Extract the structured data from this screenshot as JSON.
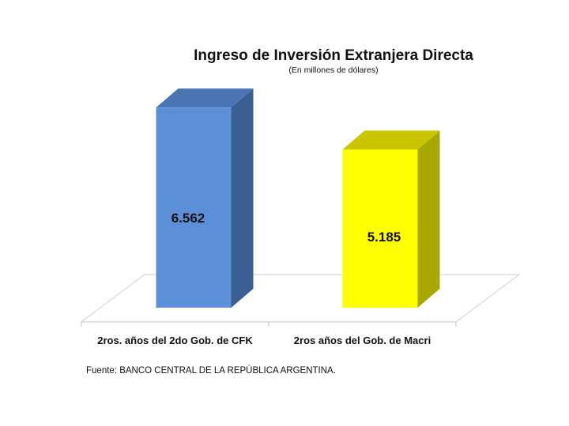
{
  "chart_data": {
    "type": "bar",
    "title": "Ingreso de Inversión Extranjera Directa",
    "subtitle": "(En millones de dólares)",
    "categories": [
      "2ros. años del 2do Gob. de CFK",
      "2ros años del Gob. de Macri"
    ],
    "values": [
      6562,
      5185
    ],
    "value_labels": [
      "6.562",
      "5.185"
    ],
    "colors": [
      "#5b8fd8",
      "#ffff00"
    ],
    "side_colors": [
      "#3a5f92",
      "#a8a800"
    ],
    "top_colors": [
      "#4a74b3",
      "#c9c600"
    ],
    "ylim": [
      0,
      7500
    ],
    "source": "Fuente: BANCO CENTRAL DE LA REPÚBLICA ARGENTINA."
  }
}
